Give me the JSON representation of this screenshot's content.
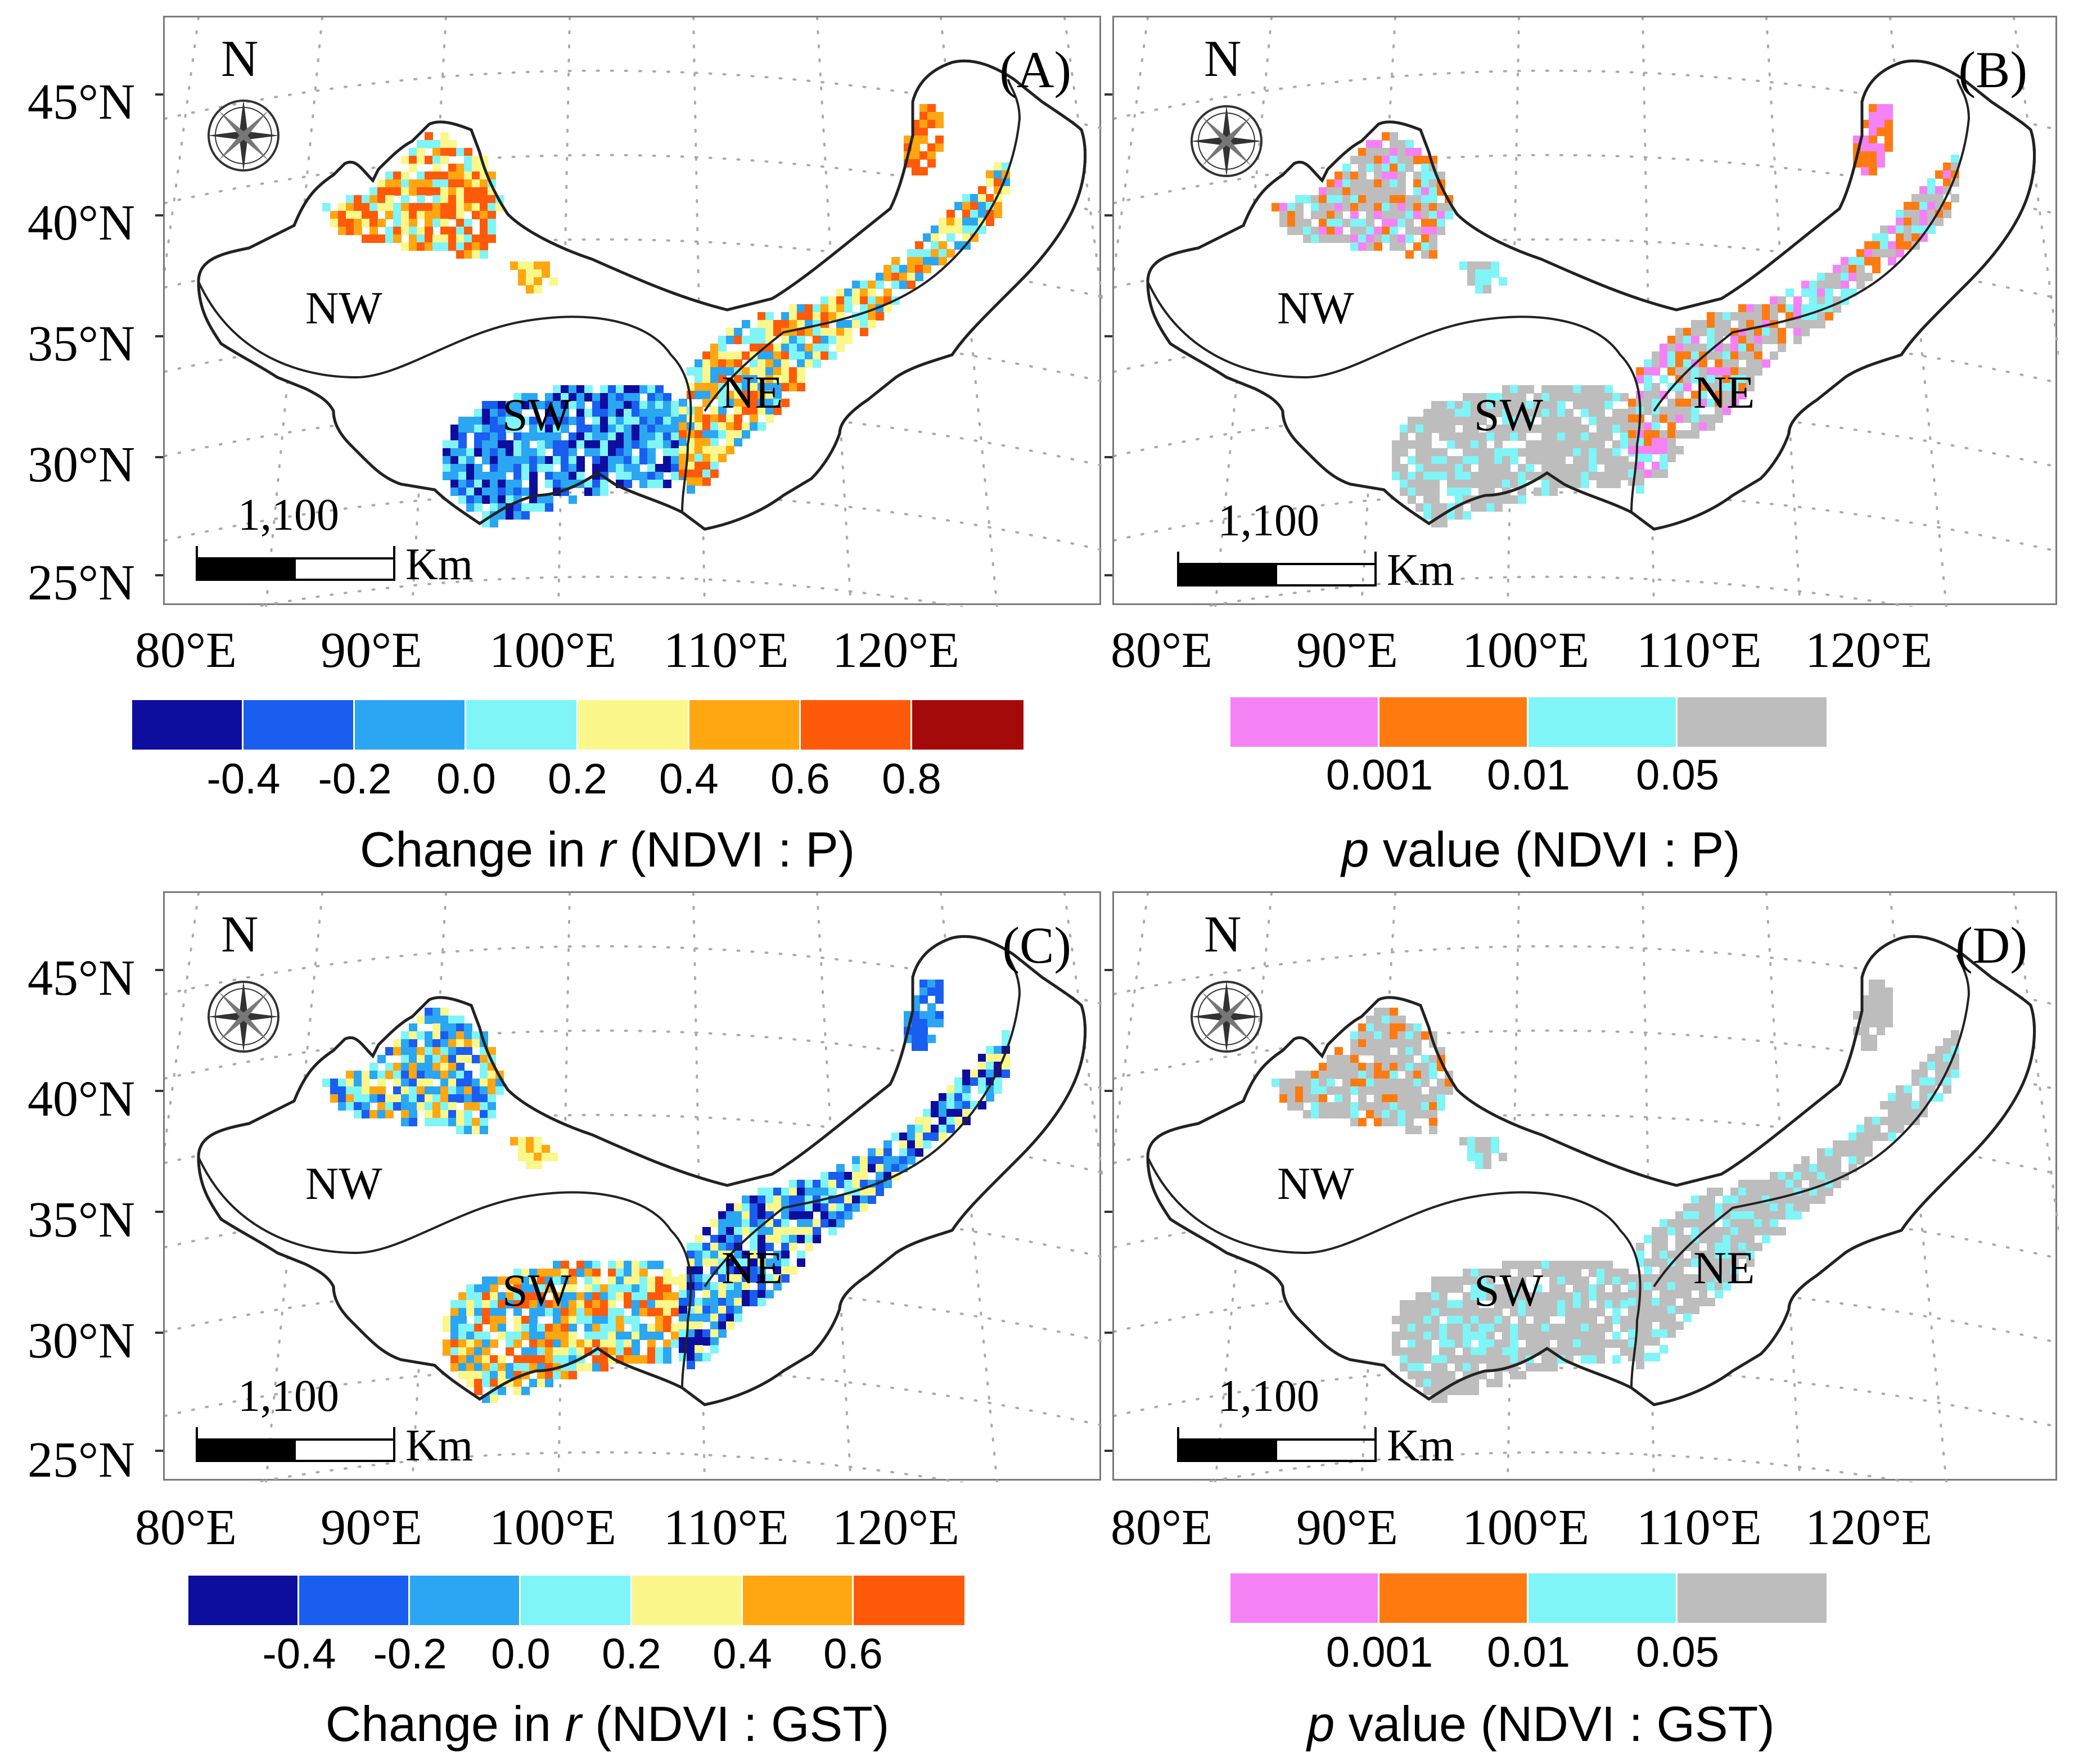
{
  "latitude_labels": [
    "45°N",
    "40°N",
    "35°N",
    "30°N",
    "25°N"
  ],
  "longitude_labels": [
    "80°E",
    "90°E",
    "100°E",
    "110°E",
    "120°E"
  ],
  "north_arrow": "N",
  "scale_bar": {
    "value": "1,100",
    "unit": "Km"
  },
  "regions": {
    "nw": "NW",
    "sw": "SW",
    "ne": "NE"
  },
  "panels": [
    {
      "id": "A",
      "label": "(A)"
    },
    {
      "id": "B",
      "label": "(B)"
    },
    {
      "id": "C",
      "label": "(C)"
    },
    {
      "id": "D",
      "label": "(D)"
    }
  ],
  "colors": {
    "dark_blue": "#0d0d9e",
    "blue": "#1a5ef0",
    "light_blue": "#2ba6f2",
    "cyan": "#7ff5f7",
    "yellow": "#fbf78a",
    "orange": "#ffa610",
    "red_orange": "#ff5a0a",
    "dark_red": "#a50a0a",
    "pink": "#f582f5",
    "p_orange": "#ff7a10",
    "p_cyan": "#7ff5f7",
    "gray": "#bdbdbd"
  },
  "legend_A": {
    "ticks": [
      "-0.4",
      "-0.2",
      "0.0",
      "0.2",
      "0.4",
      "0.6",
      "0.8"
    ],
    "title_prefix": "Change in ",
    "title_italic": "r",
    "title_suffix": " (NDVI : P)"
  },
  "legend_B": {
    "ticks": [
      "0.001",
      "0.01",
      "0.05"
    ],
    "title_italic": "p",
    "title_suffix": " value (NDVI : P)"
  },
  "legend_C": {
    "ticks": [
      "-0.4",
      "-0.2",
      "0.0",
      "0.2",
      "0.4",
      "0.6"
    ],
    "title_prefix": "Change in ",
    "title_italic": "r",
    "title_suffix": " (NDVI : GST)"
  },
  "legend_D": {
    "ticks": [
      "0.001",
      "0.01",
      "0.05"
    ],
    "title_italic": "p",
    "title_suffix": " value (NDVI : GST)"
  }
}
